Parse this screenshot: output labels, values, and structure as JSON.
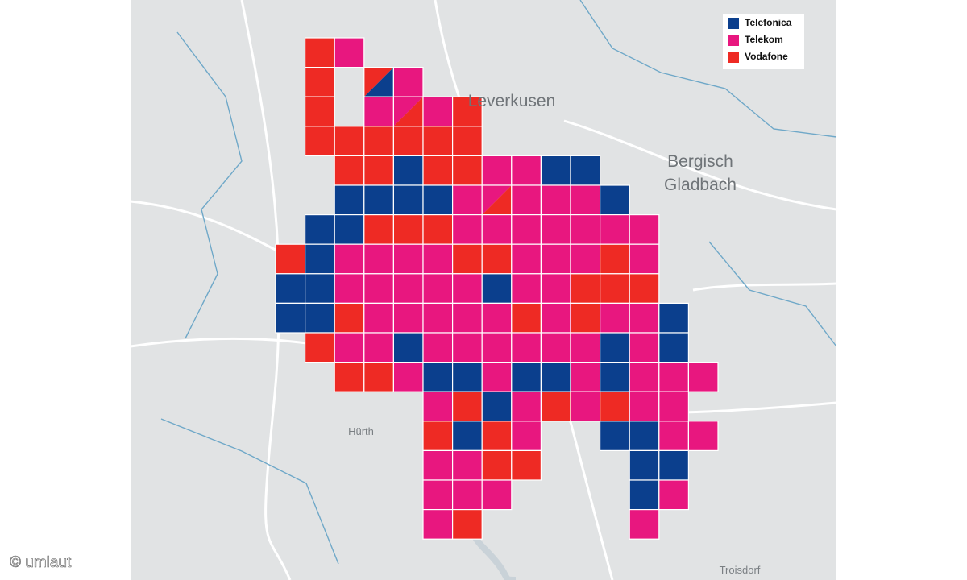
{
  "legend": [
    {
      "name": "Telefonica",
      "color": "#0b3f8d"
    },
    {
      "name": "Telekom",
      "color": "#e8177f"
    },
    {
      "name": "Vodafone",
      "color": "#ee2a24"
    }
  ],
  "places": {
    "leverkusen": "Leverkusen",
    "bergisch": "Bergisch",
    "gladbach": "Gladbach",
    "huerth": "Hürth",
    "troisdorf": "Troisdorf"
  },
  "credit": "© umlaut",
  "grid": [
    [
      null,
      "Vodafone",
      "Telekom"
    ],
    [
      null,
      "Vodafone",
      null,
      [
        "Vodafone",
        "Telefonica"
      ],
      "Telekom"
    ],
    [
      null,
      "Vodafone",
      null,
      "Telekom",
      [
        "Telekom",
        "Vodafone"
      ],
      "Telekom",
      "Vodafone"
    ],
    [
      null,
      "Vodafone",
      "Vodafone",
      "Vodafone",
      "Vodafone",
      "Vodafone",
      "Vodafone"
    ],
    [
      null,
      null,
      "Vodafone",
      "Vodafone",
      "Telefonica",
      "Vodafone",
      "Vodafone",
      "Telekom",
      "Telekom",
      "Telefonica",
      "Telefonica"
    ],
    [
      null,
      null,
      "Telefonica",
      "Telefonica",
      "Telefonica",
      "Telefonica",
      "Telekom",
      [
        "Telekom",
        "Vodafone"
      ],
      "Telekom",
      "Telekom",
      "Telekom",
      "Telefonica"
    ],
    [
      null,
      "Telefonica",
      "Telefonica",
      "Vodafone",
      "Vodafone",
      "Vodafone",
      "Telekom",
      "Telekom",
      "Telekom",
      "Telekom",
      "Telekom",
      "Telekom",
      "Telekom"
    ],
    [
      "Vodafone",
      "Telefonica",
      "Telekom",
      "Telekom",
      "Telekom",
      "Telekom",
      "Vodafone",
      "Vodafone",
      "Telekom",
      "Telekom",
      "Telekom",
      "Vodafone",
      "Telekom"
    ],
    [
      "Telefonica",
      "Telefonica",
      "Telekom",
      "Telekom",
      "Telekom",
      "Telekom",
      "Telekom",
      "Telefonica",
      "Telekom",
      "Telekom",
      "Vodafone",
      "Vodafone",
      "Vodafone"
    ],
    [
      "Telefonica",
      "Telefonica",
      "Vodafone",
      "Telekom",
      "Telekom",
      "Telekom",
      "Telekom",
      "Telekom",
      "Vodafone",
      "Telekom",
      "Vodafone",
      "Telekom",
      "Telekom",
      "Telefonica"
    ],
    [
      null,
      "Vodafone",
      "Telekom",
      "Telekom",
      "Telefonica",
      "Telekom",
      "Telekom",
      "Telekom",
      "Telekom",
      "Telekom",
      "Telekom",
      "Telefonica",
      "Telekom",
      "Telefonica"
    ],
    [
      null,
      null,
      "Vodafone",
      "Vodafone",
      "Telekom",
      "Telefonica",
      "Telefonica",
      "Telekom",
      "Telefonica",
      "Telefonica",
      "Telekom",
      "Telefonica",
      "Telekom",
      "Telekom",
      "Telekom"
    ],
    [
      null,
      null,
      null,
      null,
      null,
      "Telekom",
      "Vodafone",
      "Telefonica",
      "Telekom",
      "Vodafone",
      "Telekom",
      "Vodafone",
      "Telekom",
      "Telekom"
    ],
    [
      null,
      null,
      null,
      null,
      null,
      "Vodafone",
      "Telefonica",
      "Vodafone",
      "Telekom",
      null,
      null,
      "Telefonica",
      "Telefonica",
      "Telekom",
      "Telekom"
    ],
    [
      null,
      null,
      null,
      null,
      null,
      "Telekom",
      "Telekom",
      "Vodafone",
      "Vodafone",
      null,
      null,
      null,
      "Telefonica",
      "Telefonica"
    ],
    [
      null,
      null,
      null,
      null,
      null,
      "Telekom",
      "Telekom",
      "Telekom",
      null,
      null,
      null,
      null,
      "Telefonica",
      "Telekom"
    ],
    [
      null,
      null,
      null,
      null,
      null,
      "Telekom",
      "Vodafone",
      null,
      null,
      null,
      null,
      null,
      "Telekom"
    ]
  ]
}
